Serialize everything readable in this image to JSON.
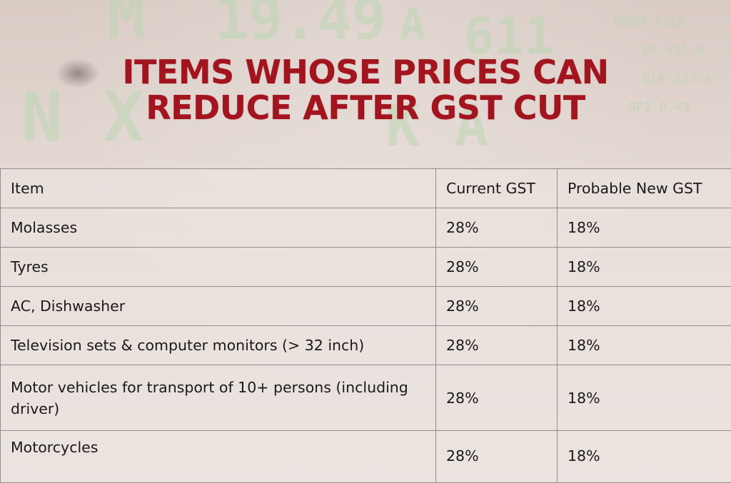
{
  "title": {
    "line1": "ITEMS WHOSE PRICES CAN",
    "line2": "REDUCE AFTER GST CUT"
  },
  "table": {
    "headers": [
      "Item",
      "Current GST",
      "Probable New GST"
    ],
    "rows": [
      {
        "item": "Molasses",
        "current": "28%",
        "new": "18%"
      },
      {
        "item": "Tyres",
        "current": "28%",
        "new": "18%"
      },
      {
        "item": "AC, Dishwasher",
        "current": "28%",
        "new": "18%"
      },
      {
        "item": "Television sets & computer monitors (> 32 inch)",
        "current": "28%",
        "new": "18%"
      },
      {
        "item": "Motor vehicles for transport of 10+ persons (including driver)",
        "current": "28%",
        "new": "18%"
      },
      {
        "item": "Motorcycles",
        "current": "28%",
        "new": "18%"
      }
    ]
  },
  "colors": {
    "title": "#a3141f",
    "text": "#1a1a1a",
    "grid": "#8f8e8e",
    "background": "#e6dcd6"
  }
}
